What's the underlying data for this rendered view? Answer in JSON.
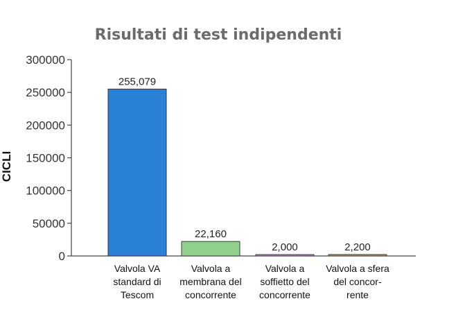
{
  "chart_data": {
    "type": "bar",
    "title": "Risultati di test indipendenti",
    "xlabel": "",
    "ylabel": "CICLI",
    "ylim": [
      0,
      300000
    ],
    "yticks": [
      "0",
      "50000",
      "100000",
      "150000",
      "200000",
      "250000",
      "300000"
    ],
    "categories": [
      [
        "Valvola VA",
        "standard di",
        "Tescom"
      ],
      [
        "Valvola a",
        "membrana del",
        "concorrente"
      ],
      [
        "Valvola a",
        "soffietto del",
        "concorrente"
      ],
      [
        "Valvola a sfera",
        "del concor-",
        "rente"
      ]
    ],
    "values": [
      255079,
      22160,
      2000,
      2200
    ],
    "data_labels": [
      "255,079",
      "22,160",
      "2,000",
      "2,200"
    ],
    "colors": [
      "#2a7fd6",
      "#8fd08a",
      "#c98fd8",
      "#e8916a"
    ],
    "grid": false,
    "legend": "none"
  }
}
